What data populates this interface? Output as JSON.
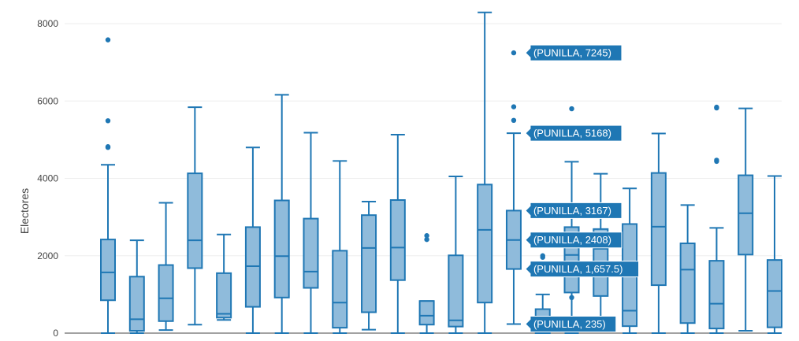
{
  "chart_data": {
    "type": "box",
    "title": "",
    "xlabel": "",
    "ylabel": "Electores",
    "ylim": [
      0,
      8300
    ],
    "yticks": [
      "0",
      "2000",
      "4000",
      "6000",
      "8000"
    ],
    "ytick_values": [
      0,
      2000,
      4000,
      6000,
      8000
    ],
    "grid": true,
    "legend": "none",
    "colors": {
      "box_fill": "#8fbbdb",
      "box_line": "#1f77b4",
      "grid": "#eeeeee",
      "tooltip_bg": "#1f77b4",
      "tooltip_text": "#ffffff"
    },
    "boxes": [
      {
        "min": 0,
        "q1": 850,
        "median": 1570,
        "q3": 2420,
        "max": 4350,
        "outliers": [
          4800,
          4820,
          5490,
          7580
        ]
      },
      {
        "min": 0,
        "q1": 60,
        "median": 360,
        "q3": 1460,
        "max": 2400,
        "outliers": []
      },
      {
        "min": 80,
        "q1": 310,
        "median": 900,
        "q3": 1760,
        "max": 3370,
        "outliers": []
      },
      {
        "min": 220,
        "q1": 1680,
        "median": 2400,
        "q3": 4130,
        "max": 5840,
        "outliers": []
      },
      {
        "min": 340,
        "q1": 400,
        "median": 500,
        "q3": 1550,
        "max": 2550,
        "outliers": []
      },
      {
        "min": 0,
        "q1": 680,
        "median": 1730,
        "q3": 2740,
        "max": 4800,
        "outliers": []
      },
      {
        "min": 0,
        "q1": 920,
        "median": 1990,
        "q3": 3430,
        "max": 6160,
        "outliers": []
      },
      {
        "min": 0,
        "q1": 1170,
        "median": 1590,
        "q3": 2960,
        "max": 5180,
        "outliers": []
      },
      {
        "min": 0,
        "q1": 140,
        "median": 790,
        "q3": 2130,
        "max": 4450,
        "outliers": []
      },
      {
        "min": 90,
        "q1": 540,
        "median": 2200,
        "q3": 3050,
        "max": 3400,
        "outliers": []
      },
      {
        "min": 0,
        "q1": 1370,
        "median": 2210,
        "q3": 3440,
        "max": 5130,
        "outliers": []
      },
      {
        "min": 0,
        "q1": 220,
        "median": 450,
        "q3": 830,
        "max": 830,
        "outliers": [
          2420,
          2520
        ]
      },
      {
        "min": 0,
        "q1": 170,
        "median": 330,
        "q3": 2010,
        "max": 4050,
        "outliers": []
      },
      {
        "min": 0,
        "q1": 790,
        "median": 2670,
        "q3": 3840,
        "max": 8290,
        "outliers": []
      },
      {
        "min": 235,
        "q1": 1657.5,
        "median": 2408,
        "q3": 3167,
        "max": 5168,
        "outliers": [
          5500,
          5850,
          7245
        ]
      },
      {
        "min": 0,
        "q1": 0,
        "median": 380,
        "q3": 620,
        "max": 1000,
        "outliers": [
          1960,
          2000
        ]
      },
      {
        "min": 0,
        "q1": 1050,
        "median": 2020,
        "q3": 2740,
        "max": 4430,
        "outliers": [
          920,
          5800
        ]
      },
      {
        "min": 70,
        "q1": 960,
        "median": 2180,
        "q3": 2690,
        "max": 4120,
        "outliers": []
      },
      {
        "min": 0,
        "q1": 180,
        "median": 580,
        "q3": 2820,
        "max": 3740,
        "outliers": []
      },
      {
        "min": 0,
        "q1": 1240,
        "median": 2750,
        "q3": 4140,
        "max": 5160,
        "outliers": []
      },
      {
        "min": 0,
        "q1": 260,
        "median": 1640,
        "q3": 2320,
        "max": 3310,
        "outliers": []
      },
      {
        "min": 0,
        "q1": 120,
        "median": 760,
        "q3": 1870,
        "max": 2720,
        "outliers": [
          4440,
          4470,
          5820,
          5840
        ]
      },
      {
        "min": 60,
        "q1": 2030,
        "median": 3100,
        "q3": 4080,
        "max": 5810,
        "outliers": []
      },
      {
        "min": 0,
        "q1": 150,
        "median": 1090,
        "q3": 1890,
        "max": 4060,
        "outliers": []
      }
    ],
    "hover": {
      "box_index": 14,
      "labels": [
        {
          "value": 7245,
          "text": "(PUNILLA, 7245)"
        },
        {
          "value": 5168,
          "text": "(PUNILLA, 5168)"
        },
        {
          "value": 3167,
          "text": "(PUNILLA, 3167)"
        },
        {
          "value": 2408,
          "text": "(PUNILLA, 2408)"
        },
        {
          "value": 1657.5,
          "text": "(PUNILLA, 1,657.5)"
        },
        {
          "value": 235,
          "text": "(PUNILLA, 235)"
        }
      ]
    }
  }
}
